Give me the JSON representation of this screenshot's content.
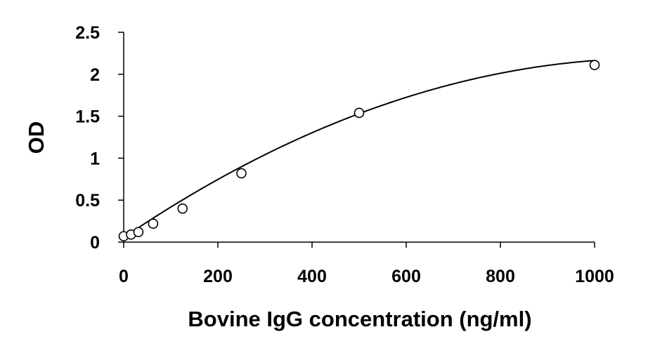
{
  "chart_data": {
    "type": "scatter",
    "title": "",
    "xlabel": "Bovine IgG concentration (ng/ml)",
    "ylabel": "OD",
    "xlim": [
      0,
      1000
    ],
    "ylim": [
      0,
      2.5
    ],
    "x_ticks": [
      "0",
      "200",
      "400",
      "600",
      "800",
      "1000"
    ],
    "y_ticks": [
      "0",
      "0.5",
      "1",
      "1.5",
      "2",
      "2.5"
    ],
    "x_tick_values": [
      0,
      200,
      400,
      600,
      800,
      1000
    ],
    "y_tick_values": [
      0,
      0.5,
      1,
      1.5,
      2,
      2.5
    ],
    "grid": false,
    "legend": "none",
    "marker": "open-circle",
    "series": [
      {
        "x": [
          0,
          15.6,
          31.25,
          62.5,
          125,
          250,
          500,
          1000
        ],
        "y": [
          0.07,
          0.09,
          0.12,
          0.22,
          0.4,
          0.82,
          1.54,
          2.11
        ]
      }
    ],
    "fit_curve": {
      "type": "polynomial-2",
      "coefficients": [
        0.055,
        0.003794,
        -1.685e-06
      ]
    },
    "colors": {
      "marker_stroke": "#000000",
      "marker_fill": "#ffffff",
      "line": "#000000"
    }
  }
}
